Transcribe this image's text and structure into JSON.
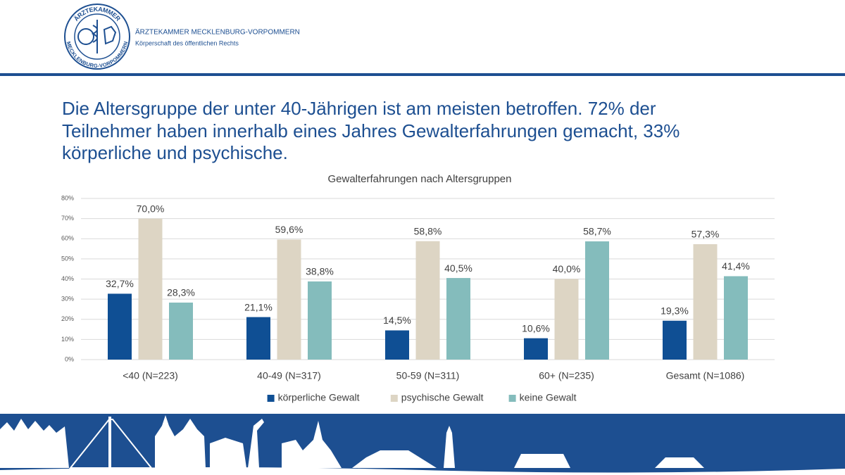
{
  "header": {
    "logo_top": "ÄRZTEKAMMER",
    "logo_bottom": "MECKLENBURG-VORPOMMERN",
    "org": "ÄRZTEKAMMER MECKLENBURG-VORPOMMERN",
    "subtitle": "Körperschaft des öffentlichen Rechts"
  },
  "slide_title": [
    "Die Altersgruppe der unter 40-Jährigen ist am meisten betroffen. 72% der",
    "Teilnehmer haben innerhalb eines Jahres Gewalterfahrungen gemacht, 33%",
    "körperliche und psychische."
  ],
  "chart_data": {
    "type": "bar",
    "title": "Gewalterfahrungen  nach Altersgruppen",
    "categories": [
      "<40 (N=223)",
      "40-49 (N=317)",
      "50-59 (N=311)",
      "60+ (N=235)",
      "Gesamt (N=1086)"
    ],
    "series": [
      {
        "name": "körperliche Gewalt",
        "color": "#0f4f94",
        "values": [
          32.7,
          21.1,
          14.5,
          10.6,
          19.3
        ],
        "value_labels": [
          "32,7%",
          "21,1%",
          "14,5%",
          "10,6%",
          "19,3%"
        ]
      },
      {
        "name": "psychische Gewalt",
        "color": "#ddd5c4",
        "values": [
          70.0,
          59.6,
          58.8,
          40.0,
          57.3
        ],
        "value_labels": [
          "70,0%",
          "59,6%",
          "58,8%",
          "40,0%",
          "57,3%"
        ]
      },
      {
        "name": "keine Gewalt",
        "color": "#84bcbc",
        "values": [
          28.3,
          38.8,
          40.5,
          58.7,
          41.4
        ],
        "value_labels": [
          "28,3%",
          "38,8%",
          "40,5%",
          "58,7%",
          "41,4%"
        ]
      }
    ],
    "ylim": [
      0,
      80
    ],
    "yticks": [
      {
        "value": 0,
        "label": "0%"
      },
      {
        "value": 10,
        "label": "10%"
      },
      {
        "value": 20,
        "label": "20%"
      },
      {
        "value": 30,
        "label": "30%"
      },
      {
        "value": 40,
        "label": "40%"
      },
      {
        "value": 50,
        "label": "50%"
      },
      {
        "value": 60,
        "label": "60%"
      },
      {
        "value": 70,
        "label": "70%"
      },
      {
        "value": 80,
        "label": "80%"
      }
    ],
    "grid": true,
    "legend": "bottom"
  }
}
